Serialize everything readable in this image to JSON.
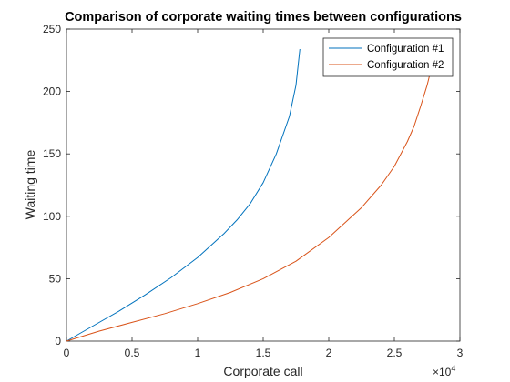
{
  "chart_data": {
    "type": "line",
    "title": "Comparison of corporate waiting times between configurations",
    "xlabel": "Corporate call",
    "ylabel": "Waiting time",
    "x_exponent_label": "×10",
    "x_exponent_power": "4",
    "xlim": [
      0,
      30000
    ],
    "ylim": [
      0,
      250
    ],
    "xticks": [
      0,
      5000,
      10000,
      15000,
      20000,
      25000,
      30000
    ],
    "xtick_labels": [
      "0",
      "0.5",
      "1",
      "1.5",
      "2",
      "2.5",
      "3"
    ],
    "yticks": [
      0,
      50,
      100,
      150,
      200,
      250
    ],
    "ytick_labels": [
      "0",
      "50",
      "100",
      "150",
      "200",
      "250"
    ],
    "grid": false,
    "legend_position": "top-right",
    "series": [
      {
        "name": "Configuration #1",
        "color": "#0072BD",
        "x": [
          0,
          2000,
          4000,
          6000,
          8000,
          10000,
          12000,
          13000,
          14000,
          15000,
          16000,
          17000,
          17500,
          17800
        ],
        "y": [
          0,
          12,
          24,
          37,
          51,
          67,
          86,
          97,
          110,
          127,
          150,
          180,
          205,
          234
        ]
      },
      {
        "name": "Configuration #2",
        "color": "#D95319",
        "x": [
          0,
          2500,
          5000,
          7500,
          10000,
          12500,
          15000,
          17500,
          20000,
          22500,
          24000,
          25000,
          26000,
          26500,
          27000,
          27500,
          27900
        ],
        "y": [
          0,
          8,
          15,
          22,
          30,
          39,
          50,
          64,
          83,
          107,
          125,
          140,
          160,
          172,
          188,
          205,
          222
        ]
      }
    ]
  }
}
